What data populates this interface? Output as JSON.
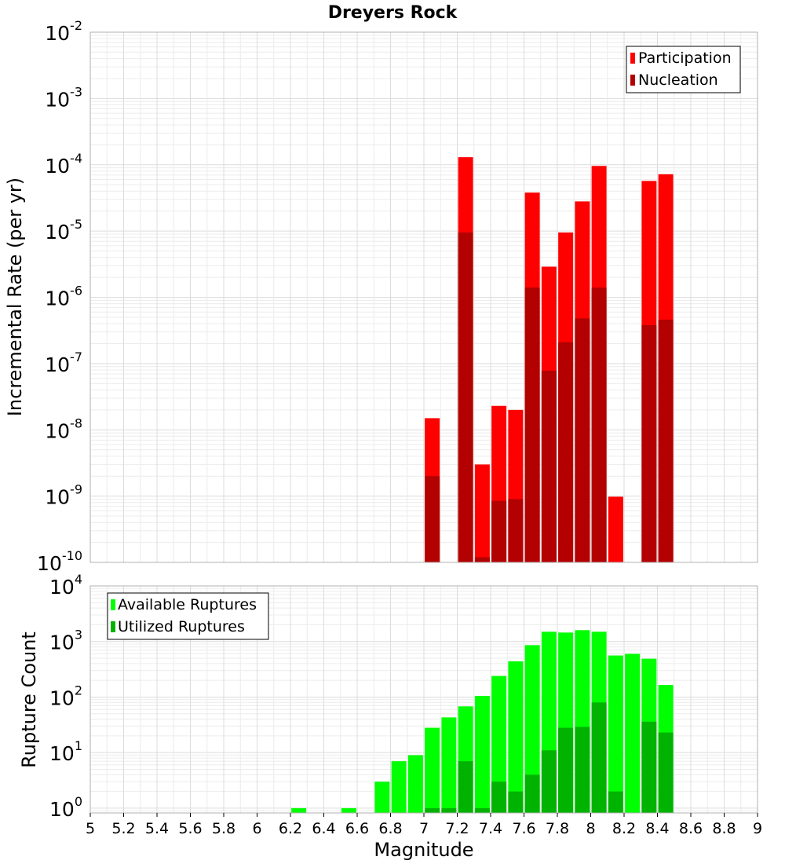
{
  "chart_data": [
    {
      "type": "bar",
      "title": "Dreyers Rock",
      "ylabel": "Incremental Rate (per yr)",
      "xlabel": "",
      "yscale": "log",
      "ylim": [
        1e-10,
        0.01
      ],
      "xlim": [
        5,
        9
      ],
      "grid": true,
      "legend_position": "top-right",
      "bar_overlay": true,
      "x": [
        7.05,
        7.25,
        7.35,
        7.45,
        7.55,
        7.65,
        7.75,
        7.85,
        7.95,
        8.05,
        8.15,
        8.35,
        8.45
      ],
      "series": [
        {
          "name": "Participation",
          "color": "#ff0000",
          "values": [
            1.5e-08,
            0.00013,
            3e-09,
            2.3e-08,
            2e-08,
            3.8e-05,
            2.9e-06,
            9.5e-06,
            2.8e-05,
            9.6e-05,
            9.8e-10,
            5.7e-05,
            7.2e-05
          ]
        },
        {
          "name": "Nucleation",
          "color": "#b30000",
          "values": [
            2e-09,
            9.5e-06,
            1.2e-10,
            8.5e-10,
            9e-10,
            1.4e-06,
            7.8e-08,
            2.1e-07,
            4.8e-07,
            1.4e-06,
            null,
            3.8e-07,
            4.6e-07
          ]
        }
      ]
    },
    {
      "type": "bar",
      "title": "",
      "ylabel": "Rupture Count",
      "xlabel": "Magnitude",
      "yscale": "log",
      "ylim": [
        0.82,
        10000
      ],
      "xlim": [
        5,
        9
      ],
      "grid": true,
      "legend_position": "top-left",
      "bar_overlay": true,
      "x": [
        6.25,
        6.55,
        6.75,
        6.85,
        6.95,
        7.05,
        7.15,
        7.25,
        7.35,
        7.45,
        7.55,
        7.65,
        7.75,
        7.85,
        7.95,
        8.05,
        8.15,
        8.25,
        8.35,
        8.45
      ],
      "series": [
        {
          "name": "Available Ruptures",
          "color": "#00ff00",
          "values": [
            1,
            1,
            3,
            7,
            9,
            28,
            43,
            68,
            105,
            240,
            440,
            860,
            1500,
            1450,
            1600,
            1500,
            560,
            600,
            490,
            165
          ]
        },
        {
          "name": "Utilized Ruptures",
          "color": "#00b300",
          "values": [
            null,
            null,
            null,
            null,
            null,
            1,
            1,
            7,
            1,
            3,
            2,
            4,
            11,
            28,
            29,
            80,
            2,
            null,
            36,
            23
          ]
        }
      ],
      "xticks": [
        "5",
        "5.2",
        "5.4",
        "5.6",
        "5.8",
        "6",
        "6.2",
        "6.4",
        "6.6",
        "6.8",
        "7",
        "7.2",
        "7.4",
        "7.6",
        "7.8",
        "8",
        "8.2",
        "8.4",
        "8.6",
        "8.8",
        "9"
      ]
    }
  ],
  "top": {
    "ytick_base": "10",
    "yticks_exp": [
      "-2",
      "-3",
      "-4",
      "-5",
      "-6",
      "-7",
      "-8",
      "-9",
      "-10"
    ]
  },
  "bottom": {
    "ytick_base": "10",
    "yticks_exp": [
      "4",
      "3",
      "2",
      "1",
      "0"
    ]
  }
}
